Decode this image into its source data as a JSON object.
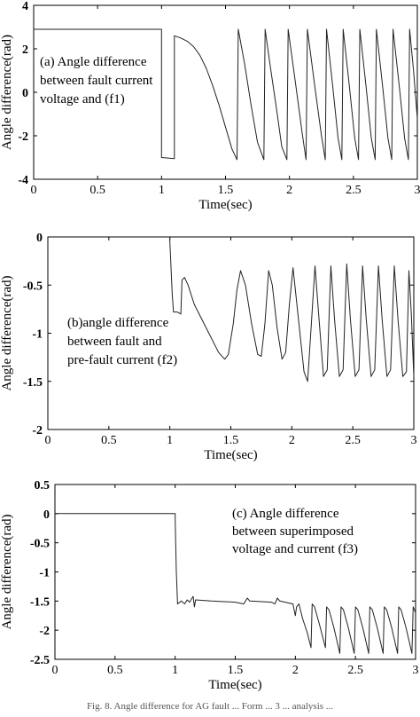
{
  "chart_data": [
    {
      "type": "line",
      "xlabel": "Time(sec)",
      "ylabel": "Angle difference(rad)",
      "xlim": [
        0,
        3
      ],
      "ylim": [
        -4,
        4
      ],
      "xticks": [
        "0",
        "0.5",
        "1",
        "1.5",
        "2",
        "2.5",
        "3"
      ],
      "yticks": [
        "4",
        "2",
        "0",
        "-2",
        "-4"
      ],
      "xtick_values": [
        0,
        0.5,
        1,
        1.5,
        2,
        2.5,
        3
      ],
      "ytick_values": [
        4,
        2,
        0,
        -2,
        -4
      ],
      "annotation": [
        "(a) Angle difference",
        "between fault current",
        "voltage and (f1)"
      ],
      "series": [
        {
          "points": [
            [
              0,
              2.9
            ],
            [
              1.0,
              2.9
            ],
            [
              1.0,
              -3.0
            ],
            [
              1.1,
              -3.05
            ],
            [
              1.1,
              2.6
            ],
            [
              1.15,
              2.5
            ],
            [
              1.2,
              2.35
            ],
            [
              1.25,
              2.1
            ],
            [
              1.3,
              1.7
            ],
            [
              1.35,
              1.1
            ],
            [
              1.4,
              0.3
            ],
            [
              1.45,
              -0.6
            ],
            [
              1.5,
              -1.6
            ],
            [
              1.55,
              -2.6
            ],
            [
              1.59,
              -3.1
            ],
            [
              1.6,
              2.9
            ],
            [
              1.65,
              1.3
            ],
            [
              1.7,
              -0.6
            ],
            [
              1.75,
              -2.3
            ],
            [
              1.8,
              -3.1
            ],
            [
              1.81,
              2.9
            ],
            [
              1.85,
              1.2
            ],
            [
              1.9,
              -0.8
            ],
            [
              1.94,
              -2.5
            ],
            [
              1.98,
              -3.1
            ],
            [
              1.99,
              2.9
            ],
            [
              2.05,
              0.3
            ],
            [
              2.1,
              -1.9
            ],
            [
              2.13,
              -3.1
            ],
            [
              2.14,
              2.9
            ],
            [
              2.2,
              0.2
            ],
            [
              2.25,
              -2.0
            ],
            [
              2.28,
              -3.1
            ],
            [
              2.29,
              2.9
            ],
            [
              2.34,
              0.2
            ],
            [
              2.38,
              -2.1
            ],
            [
              2.41,
              -3.1
            ],
            [
              2.42,
              2.9
            ],
            [
              2.47,
              0.2
            ],
            [
              2.51,
              -2.1
            ],
            [
              2.54,
              -3.1
            ],
            [
              2.55,
              2.9
            ],
            [
              2.6,
              0.2
            ],
            [
              2.64,
              -2.1
            ],
            [
              2.67,
              -3.1
            ],
            [
              2.68,
              2.9
            ],
            [
              2.73,
              0.2
            ],
            [
              2.77,
              -2.1
            ],
            [
              2.8,
              -3.1
            ],
            [
              2.81,
              2.9
            ],
            [
              2.86,
              0.2
            ],
            [
              2.9,
              -2.1
            ],
            [
              2.93,
              -3.1
            ],
            [
              2.94,
              2.9
            ],
            [
              2.97,
              1.0
            ],
            [
              3.0,
              -1.2
            ]
          ]
        }
      ]
    },
    {
      "type": "line",
      "xlabel": "Time(sec)",
      "ylabel": "Angle difference(rad)",
      "xlim": [
        0,
        3
      ],
      "ylim": [
        -2,
        0
      ],
      "xticks": [
        "0",
        "0.5",
        "1",
        "1.5",
        "2",
        "2.5",
        "3"
      ],
      "yticks": [
        "0",
        "-0.5",
        "-1",
        "-1.5",
        "-2"
      ],
      "xtick_values": [
        0,
        0.5,
        1,
        1.5,
        2,
        2.5,
        3
      ],
      "ytick_values": [
        0,
        -0.5,
        -1,
        -1.5,
        -2
      ],
      "annotation": [
        "(b)angle difference",
        "between fault and",
        "pre-fault current (f2)"
      ],
      "series": [
        {
          "points": [
            [
              1.0,
              0.0
            ],
            [
              1.0,
              -0.05
            ],
            [
              1.02,
              -0.6
            ],
            [
              1.03,
              -0.78
            ],
            [
              1.06,
              -0.78
            ],
            [
              1.09,
              -0.8
            ],
            [
              1.1,
              -0.45
            ],
            [
              1.12,
              -0.42
            ],
            [
              1.15,
              -0.5
            ],
            [
              1.2,
              -0.7
            ],
            [
              1.3,
              -0.95
            ],
            [
              1.4,
              -1.2
            ],
            [
              1.45,
              -1.27
            ],
            [
              1.48,
              -1.22
            ],
            [
              1.52,
              -0.9
            ],
            [
              1.55,
              -0.55
            ],
            [
              1.58,
              -0.35
            ],
            [
              1.62,
              -0.5
            ],
            [
              1.67,
              -0.9
            ],
            [
              1.72,
              -1.22
            ],
            [
              1.75,
              -1.24
            ],
            [
              1.78,
              -0.9
            ],
            [
              1.81,
              -0.35
            ],
            [
              1.84,
              -0.5
            ],
            [
              1.88,
              -0.95
            ],
            [
              1.92,
              -1.27
            ],
            [
              1.95,
              -1.2
            ],
            [
              1.98,
              -0.7
            ],
            [
              2.01,
              -0.32
            ],
            [
              2.05,
              -0.8
            ],
            [
              2.1,
              -1.4
            ],
            [
              2.13,
              -1.5
            ],
            [
              2.16,
              -0.9
            ],
            [
              2.19,
              -0.3
            ],
            [
              2.22,
              -0.8
            ],
            [
              2.26,
              -1.45
            ],
            [
              2.29,
              -1.38
            ],
            [
              2.32,
              -0.3
            ],
            [
              2.35,
              -0.85
            ],
            [
              2.39,
              -1.45
            ],
            [
              2.42,
              -1.38
            ],
            [
              2.45,
              -0.28
            ],
            [
              2.48,
              -0.85
            ],
            [
              2.52,
              -1.45
            ],
            [
              2.55,
              -1.38
            ],
            [
              2.58,
              -0.3
            ],
            [
              2.61,
              -0.85
            ],
            [
              2.65,
              -1.45
            ],
            [
              2.68,
              -1.38
            ],
            [
              2.71,
              -0.3
            ],
            [
              2.74,
              -0.85
            ],
            [
              2.78,
              -1.45
            ],
            [
              2.81,
              -1.38
            ],
            [
              2.84,
              -0.3
            ],
            [
              2.87,
              -0.85
            ],
            [
              2.91,
              -1.45
            ],
            [
              2.94,
              -1.4
            ],
            [
              2.96,
              -0.35
            ],
            [
              2.98,
              -0.8
            ],
            [
              3.0,
              -1.45
            ]
          ]
        }
      ]
    },
    {
      "type": "line",
      "xlabel": "Time(sec)",
      "ylabel": "Angle difference(rad)",
      "xlim": [
        0,
        3
      ],
      "ylim": [
        -2.5,
        0.5
      ],
      "xticks": [
        "0",
        "0.5",
        "1",
        "1.5",
        "2",
        "2.5",
        "3"
      ],
      "yticks": [
        "0.5",
        "0",
        "-0.5",
        "-1",
        "-1.5",
        "-2",
        "-2.5"
      ],
      "xtick_values": [
        0,
        0.5,
        1,
        1.5,
        2,
        2.5,
        3
      ],
      "ytick_values": [
        0.5,
        0,
        -0.5,
        -1,
        -1.5,
        -2,
        -2.5
      ],
      "annotation": [
        "(c) Angle difference",
        "between superimposed",
        "voltage and current (f3)"
      ],
      "series": [
        {
          "points": [
            [
              0,
              0.0
            ],
            [
              1.0,
              0.0
            ],
            [
              1.0,
              -0.1
            ],
            [
              1.01,
              -1.0
            ],
            [
              1.02,
              -1.55
            ],
            [
              1.05,
              -1.5
            ],
            [
              1.08,
              -1.55
            ],
            [
              1.1,
              -1.48
            ],
            [
              1.12,
              -1.52
            ],
            [
              1.15,
              -1.42
            ],
            [
              1.16,
              -1.6
            ],
            [
              1.17,
              -1.48
            ],
            [
              1.3,
              -1.5
            ],
            [
              1.5,
              -1.52
            ],
            [
              1.57,
              -1.55
            ],
            [
              1.6,
              -1.45
            ],
            [
              1.62,
              -1.5
            ],
            [
              1.8,
              -1.52
            ],
            [
              1.83,
              -1.55
            ],
            [
              1.85,
              -1.45
            ],
            [
              1.87,
              -1.5
            ],
            [
              1.98,
              -1.55
            ],
            [
              2.0,
              -1.75
            ],
            [
              2.01,
              -1.6
            ],
            [
              2.03,
              -1.55
            ],
            [
              2.06,
              -1.8
            ],
            [
              2.1,
              -2.05
            ],
            [
              2.13,
              -2.3
            ],
            [
              2.14,
              -1.55
            ],
            [
              2.16,
              -1.6
            ],
            [
              2.2,
              -1.9
            ],
            [
              2.25,
              -2.3
            ],
            [
              2.26,
              -1.6
            ],
            [
              2.28,
              -1.65
            ],
            [
              2.32,
              -1.95
            ],
            [
              2.37,
              -2.4
            ],
            [
              2.38,
              -1.6
            ],
            [
              2.4,
              -1.65
            ],
            [
              2.44,
              -1.95
            ],
            [
              2.49,
              -2.4
            ],
            [
              2.5,
              -1.6
            ],
            [
              2.52,
              -1.65
            ],
            [
              2.56,
              -1.95
            ],
            [
              2.61,
              -2.4
            ],
            [
              2.62,
              -1.6
            ],
            [
              2.64,
              -1.65
            ],
            [
              2.68,
              -1.95
            ],
            [
              2.73,
              -2.4
            ],
            [
              2.74,
              -1.6
            ],
            [
              2.76,
              -1.65
            ],
            [
              2.8,
              -1.95
            ],
            [
              2.85,
              -2.4
            ],
            [
              2.86,
              -1.6
            ],
            [
              2.88,
              -1.65
            ],
            [
              2.92,
              -1.95
            ],
            [
              2.97,
              -2.4
            ],
            [
              2.98,
              -1.6
            ],
            [
              3.0,
              -1.7
            ]
          ]
        }
      ]
    }
  ],
  "caption": "Fig. 8. Angle difference for AG fault ... Form ... 3 ... analysis ..."
}
